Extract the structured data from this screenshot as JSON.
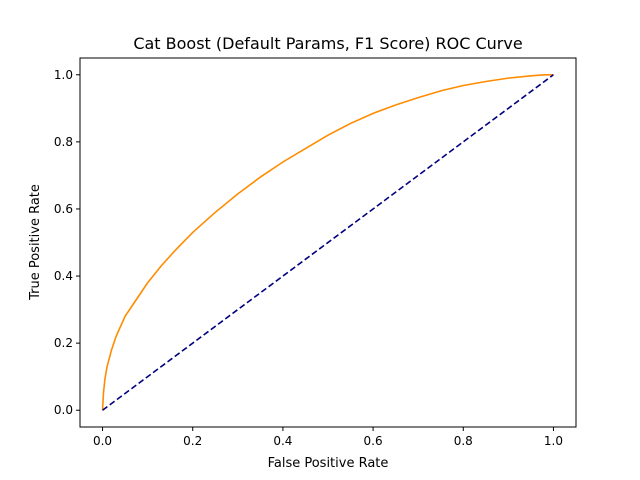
{
  "chart_data": {
    "type": "line",
    "title": "Cat Boost (Default Params, F1 Score) ROC Curve",
    "xlabel": "False Positive Rate",
    "ylabel": "True Positive Rate",
    "xlim": [
      -0.05,
      1.05
    ],
    "ylim": [
      -0.05,
      1.05
    ],
    "xticks": [
      0.0,
      0.2,
      0.4,
      0.6,
      0.8,
      1.0
    ],
    "yticks": [
      0.0,
      0.2,
      0.4,
      0.6,
      0.8,
      1.0
    ],
    "xtick_labels": [
      "0.0",
      "0.2",
      "0.4",
      "0.6",
      "0.8",
      "1.0"
    ],
    "ytick_labels": [
      "0.0",
      "0.2",
      "0.4",
      "0.6",
      "0.8",
      "1.0"
    ],
    "grid": false,
    "series": [
      {
        "color": "#ff8c00",
        "style": "solid",
        "x": [
          0.0,
          0.002,
          0.005,
          0.01,
          0.02,
          0.03,
          0.05,
          0.07,
          0.1,
          0.13,
          0.16,
          0.2,
          0.25,
          0.3,
          0.35,
          0.4,
          0.45,
          0.5,
          0.55,
          0.6,
          0.65,
          0.7,
          0.75,
          0.8,
          0.85,
          0.9,
          0.95,
          0.98,
          1.0
        ],
        "y": [
          0.0,
          0.05,
          0.09,
          0.13,
          0.18,
          0.22,
          0.28,
          0.32,
          0.38,
          0.43,
          0.475,
          0.53,
          0.59,
          0.645,
          0.695,
          0.74,
          0.78,
          0.82,
          0.855,
          0.885,
          0.91,
          0.932,
          0.952,
          0.968,
          0.98,
          0.99,
          0.997,
          1.0,
          1.0
        ]
      },
      {
        "color": "#000080",
        "style": "dashed",
        "x": [
          0.0,
          1.0
        ],
        "y": [
          0.0,
          1.0
        ]
      }
    ]
  }
}
